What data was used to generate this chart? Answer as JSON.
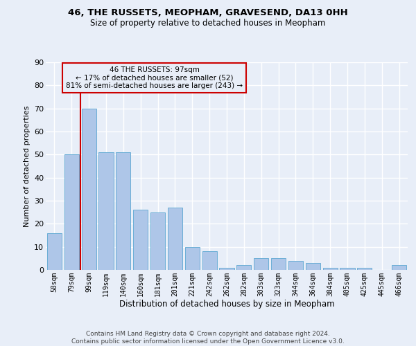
{
  "title1": "46, THE RUSSETS, MEOPHAM, GRAVESEND, DA13 0HH",
  "title2": "Size of property relative to detached houses in Meopham",
  "xlabel": "Distribution of detached houses by size in Meopham",
  "ylabel": "Number of detached properties",
  "categories": [
    "58sqm",
    "79sqm",
    "99sqm",
    "119sqm",
    "140sqm",
    "160sqm",
    "181sqm",
    "201sqm",
    "221sqm",
    "242sqm",
    "262sqm",
    "282sqm",
    "303sqm",
    "323sqm",
    "344sqm",
    "364sqm",
    "384sqm",
    "405sqm",
    "425sqm",
    "445sqm",
    "466sqm"
  ],
  "values": [
    16,
    50,
    70,
    51,
    51,
    26,
    25,
    27,
    10,
    8,
    1,
    2,
    5,
    5,
    4,
    3,
    1,
    1,
    1,
    0,
    2
  ],
  "bar_color": "#aec6e8",
  "bar_edge_color": "#6baed6",
  "property_line_color": "#cc0000",
  "annotation_text": "46 THE RUSSETS: 97sqm\n← 17% of detached houses are smaller (52)\n81% of semi-detached houses are larger (243) →",
  "annotation_box_color": "#cc0000",
  "footer": "Contains HM Land Registry data © Crown copyright and database right 2024.\nContains public sector information licensed under the Open Government Licence v3.0.",
  "ylim": [
    0,
    90
  ],
  "yticks": [
    0,
    10,
    20,
    30,
    40,
    50,
    60,
    70,
    80,
    90
  ],
  "background_color": "#e8eef8",
  "grid_color": "#ffffff"
}
